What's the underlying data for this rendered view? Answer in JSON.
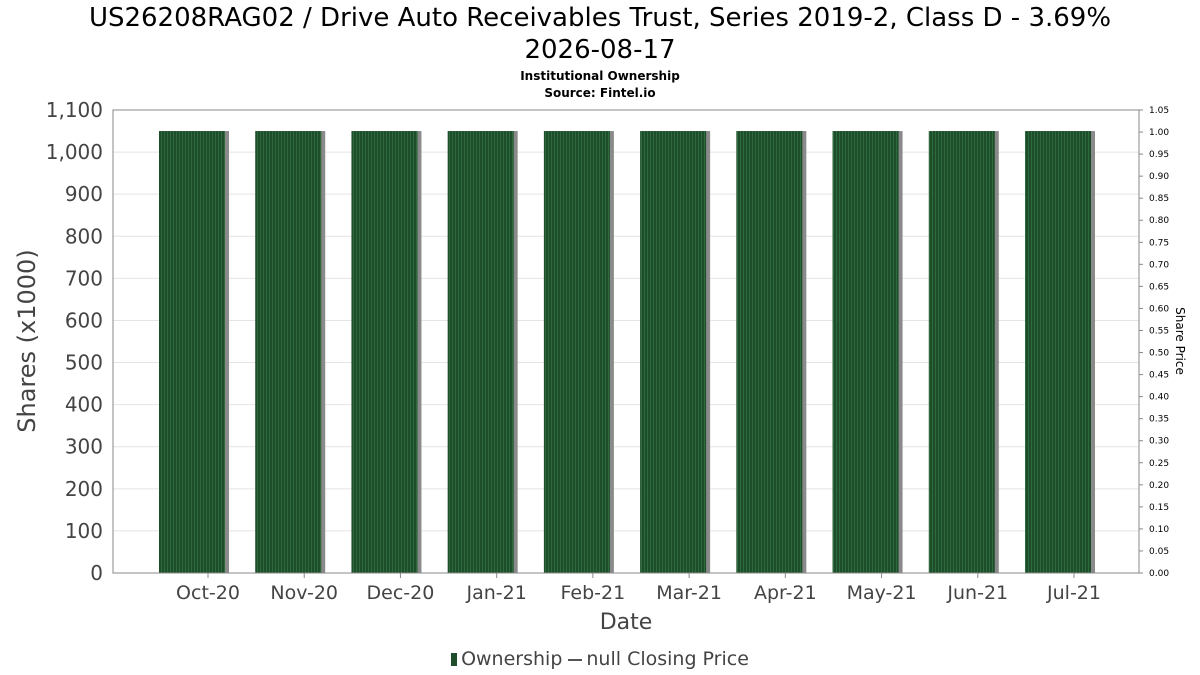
{
  "header": {
    "title_line1": "US26208RAG02 / Drive Auto Receivables Trust, Series 2019-2, Class D - 3.69%",
    "title_line2": "2026-08-17",
    "subtitle": "Institutional Ownership",
    "source": "Source: Fintel.io"
  },
  "legend": {
    "ownership": "Ownership",
    "price": "null Closing Price"
  },
  "colors": {
    "bar": "#1e4d2b",
    "bar_stripe": "#2d6a3c",
    "bar_shadow": "#8a8a8a",
    "grid": "#e4e4e4",
    "axis": "#888888"
  },
  "chart_data": {
    "type": "bar",
    "categories": [
      "Oct-20",
      "Nov-20",
      "Dec-20",
      "Jan-21",
      "Feb-21",
      "Mar-21",
      "Apr-21",
      "May-21",
      "Jun-21",
      "Jul-21"
    ],
    "series": [
      {
        "name": "Ownership",
        "values": [
          1050,
          1050,
          1050,
          1050,
          1050,
          1050,
          1050,
          1050,
          1050,
          1050
        ]
      }
    ],
    "xlabel": "Date",
    "ylabel": "Shares (x1000)",
    "y2label": "Share Price",
    "ylim": [
      0,
      1100
    ],
    "yticks": [
      0,
      100,
      200,
      300,
      400,
      500,
      600,
      700,
      800,
      900,
      1000,
      1100
    ],
    "y2lim": [
      0,
      1.05
    ],
    "y2ticks": [
      "0.00",
      "0.05",
      "0.10",
      "0.15",
      "0.20",
      "0.25",
      "0.30",
      "0.35",
      "0.40",
      "0.45",
      "0.50",
      "0.55",
      "0.60",
      "0.65",
      "0.70",
      "0.75",
      "0.80",
      "0.85",
      "0.90",
      "0.95",
      "1.00",
      "1.05"
    ],
    "grid": true,
    "legend_position": "bottom"
  }
}
